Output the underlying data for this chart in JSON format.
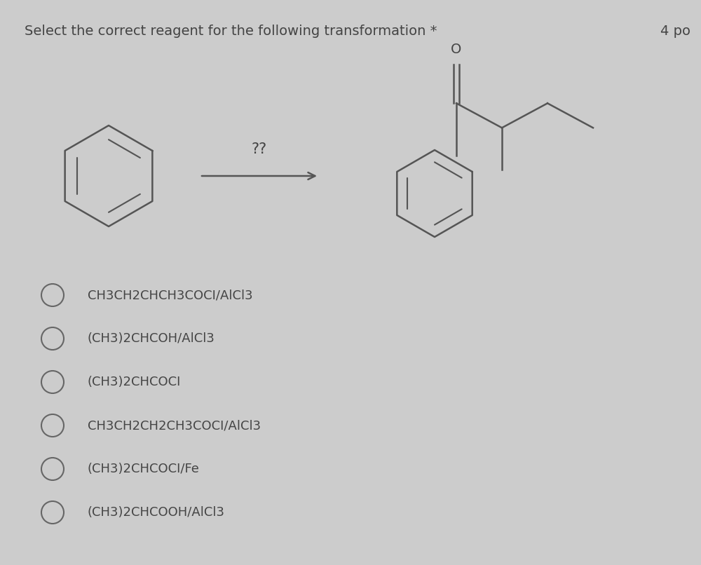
{
  "title": "Select the correct reagent for the following transformation *",
  "points_label": "4 po",
  "question_mark": "??",
  "background_color": "#cccccc",
  "text_color": "#444444",
  "bond_color": "#555555",
  "options": [
    "CH3CH2CHCH3COCI/AlCl3",
    "(CH3)2CHCOH/AlCl3",
    "(CH3)2CHCOCI",
    "CH3CH2CH2CH3COCI/AlCl3",
    "(CH3)2CHCOCI/Fe",
    "(CH3)2CHCOOH/AlCl3"
  ],
  "title_fontsize": 14,
  "option_fontsize": 13,
  "figsize": [
    10.0,
    8.06
  ]
}
